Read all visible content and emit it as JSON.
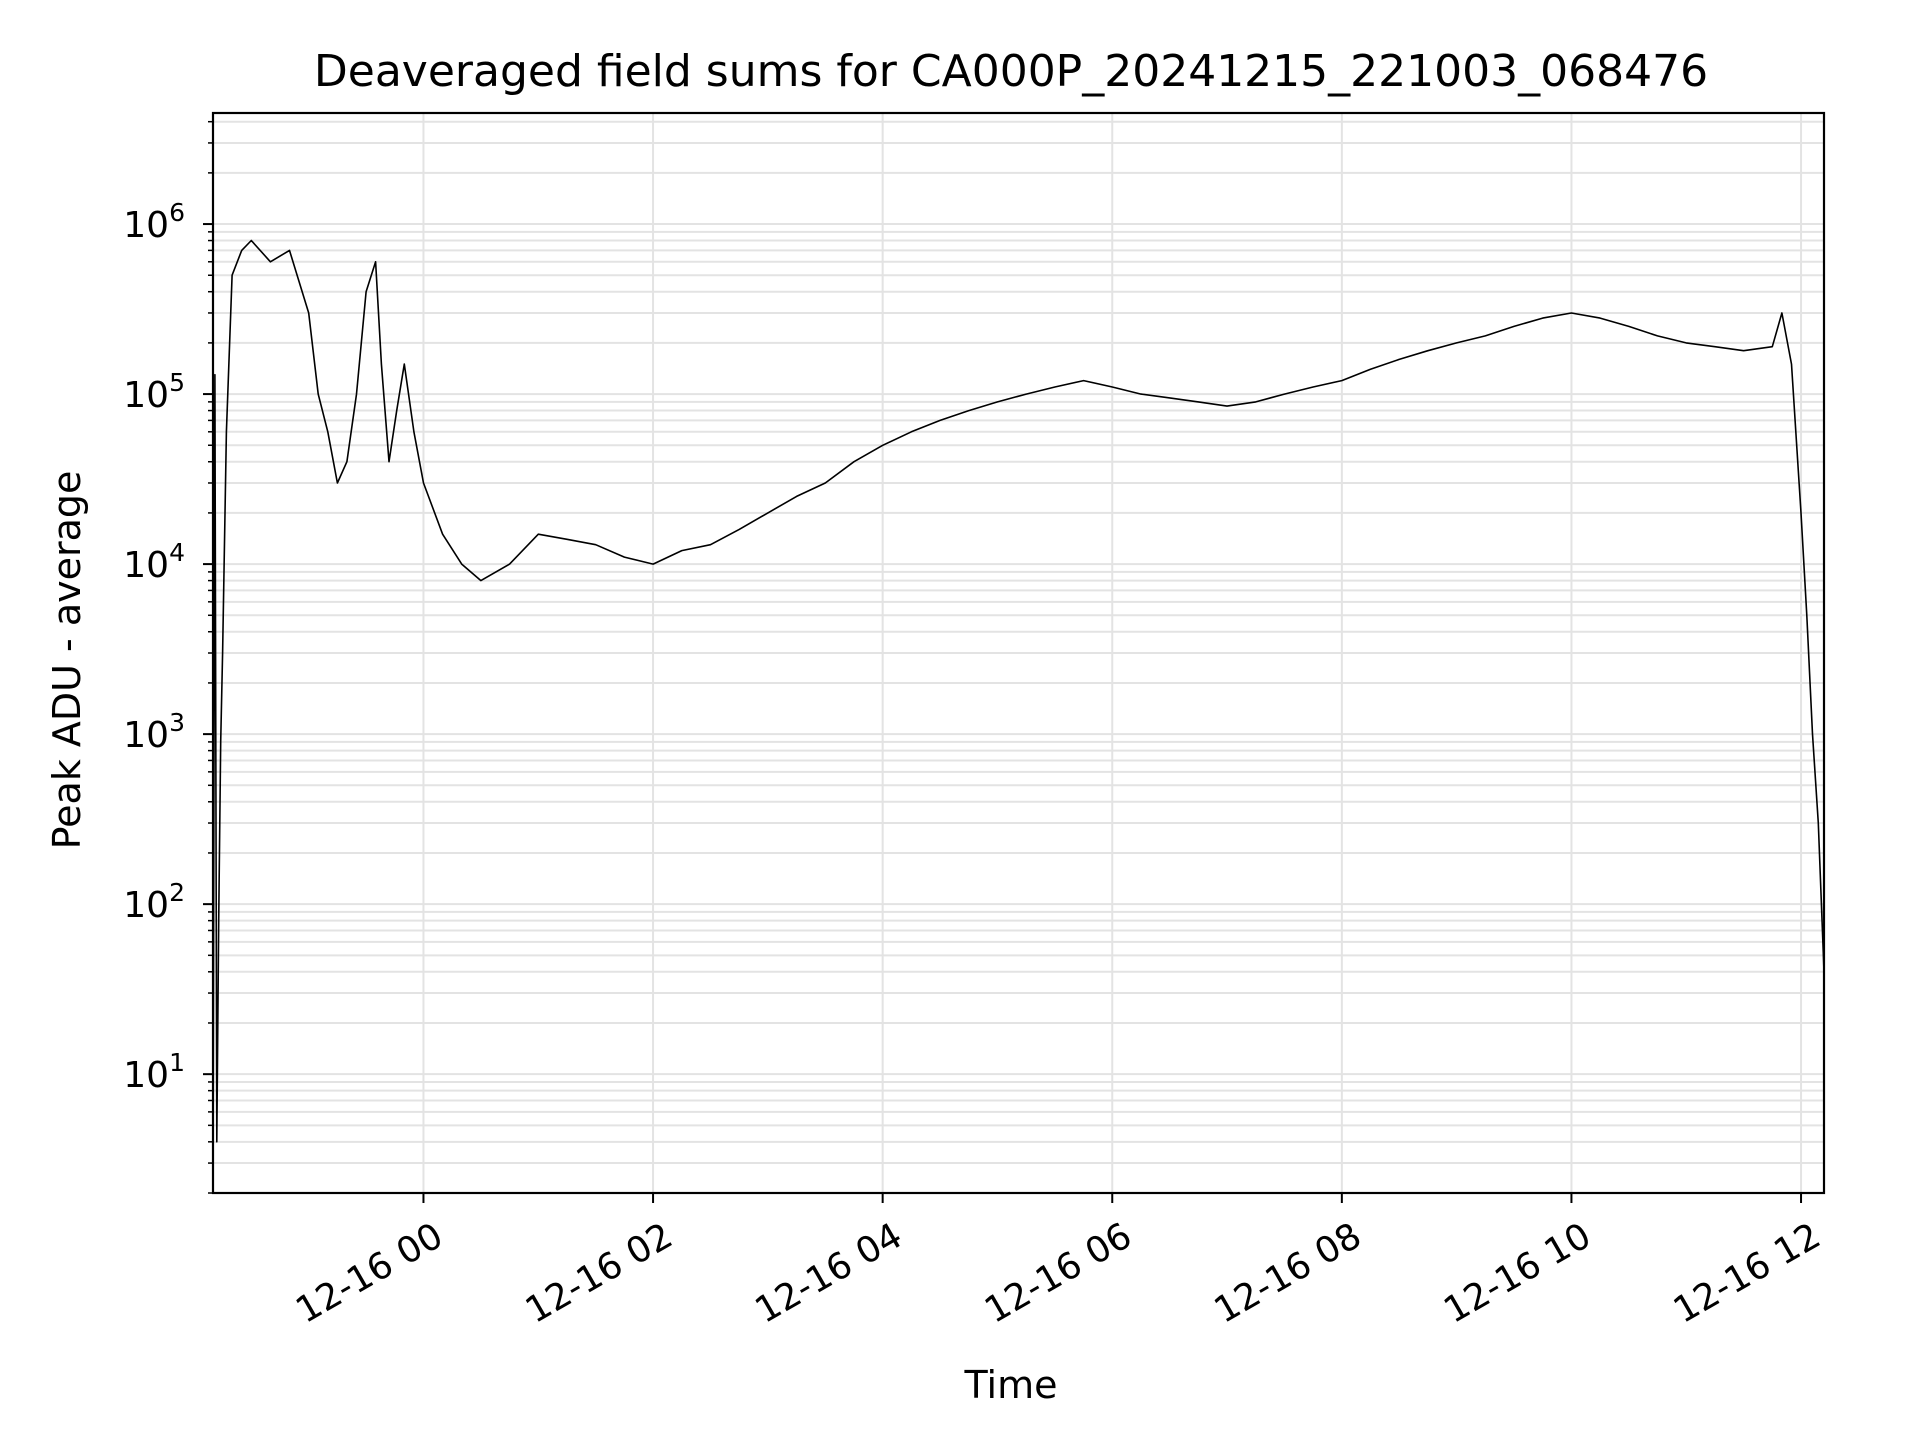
{
  "chart_data": {
    "type": "line",
    "title": "Deaveraged field sums for CA000P_20241215_221003_068476",
    "xlabel": "Time",
    "ylabel": "Peak ADU - average",
    "yscale": "log",
    "ylim": [
      2,
      4500000
    ],
    "xlim": [
      "2024-12-15 22:10",
      "2024-12-16 12:12"
    ],
    "grid": true,
    "line_color": "#000000",
    "grid_color": "#e3e3e3",
    "x_ticks": [
      {
        "value": "2024-12-16 00:00",
        "label": "12-16 00"
      },
      {
        "value": "2024-12-16 02:00",
        "label": "12-16 02"
      },
      {
        "value": "2024-12-16 04:00",
        "label": "12-16 04"
      },
      {
        "value": "2024-12-16 06:00",
        "label": "12-16 06"
      },
      {
        "value": "2024-12-16 08:00",
        "label": "12-16 08"
      },
      {
        "value": "2024-12-16 10:00",
        "label": "12-16 10"
      },
      {
        "value": "2024-12-16 12:00",
        "label": "12-16 12"
      }
    ],
    "y_ticks": [
      {
        "value": 10,
        "base": "10",
        "exp": "1"
      },
      {
        "value": 100,
        "base": "10",
        "exp": "2"
      },
      {
        "value": 1000,
        "base": "10",
        "exp": "3"
      },
      {
        "value": 10000,
        "base": "10",
        "exp": "4"
      },
      {
        "value": 100000,
        "base": "10",
        "exp": "5"
      },
      {
        "value": 1000000,
        "base": "10",
        "exp": "6"
      }
    ],
    "series": [
      {
        "x": [
          "2024-12-15 22:10",
          "2024-12-15 22:11",
          "2024-12-15 22:12",
          "2024-12-15 22:13",
          "2024-12-15 22:14",
          "2024-12-15 22:15",
          "2024-12-15 22:17",
          "2024-12-15 22:20",
          "2024-12-15 22:25",
          "2024-12-15 22:30",
          "2024-12-15 22:40",
          "2024-12-15 22:50",
          "2024-12-15 23:00",
          "2024-12-15 23:05",
          "2024-12-15 23:10",
          "2024-12-15 23:15",
          "2024-12-15 23:20",
          "2024-12-15 23:25",
          "2024-12-15 23:30",
          "2024-12-15 23:35",
          "2024-12-15 23:38",
          "2024-12-15 23:42",
          "2024-12-15 23:46",
          "2024-12-15 23:50",
          "2024-12-15 23:55",
          "2024-12-16 00:00",
          "2024-12-16 00:10",
          "2024-12-16 00:20",
          "2024-12-16 00:30",
          "2024-12-16 00:45",
          "2024-12-16 01:00",
          "2024-12-16 01:15",
          "2024-12-16 01:30",
          "2024-12-16 01:45",
          "2024-12-16 02:00",
          "2024-12-16 02:15",
          "2024-12-16 02:30",
          "2024-12-16 02:45",
          "2024-12-16 03:00",
          "2024-12-16 03:15",
          "2024-12-16 03:30",
          "2024-12-16 03:45",
          "2024-12-16 04:00",
          "2024-12-16 04:15",
          "2024-12-16 04:30",
          "2024-12-16 04:45",
          "2024-12-16 05:00",
          "2024-12-16 05:15",
          "2024-12-16 05:30",
          "2024-12-16 05:45",
          "2024-12-16 06:00",
          "2024-12-16 06:15",
          "2024-12-16 06:30",
          "2024-12-16 06:45",
          "2024-12-16 07:00",
          "2024-12-16 07:15",
          "2024-12-16 07:30",
          "2024-12-16 07:45",
          "2024-12-16 08:00",
          "2024-12-16 08:15",
          "2024-12-16 08:30",
          "2024-12-16 08:45",
          "2024-12-16 09:00",
          "2024-12-16 09:15",
          "2024-12-16 09:30",
          "2024-12-16 09:45",
          "2024-12-16 10:00",
          "2024-12-16 10:15",
          "2024-12-16 10:30",
          "2024-12-16 10:45",
          "2024-12-16 11:00",
          "2024-12-16 11:15",
          "2024-12-16 11:30",
          "2024-12-16 11:45",
          "2024-12-16 11:50",
          "2024-12-16 11:55",
          "2024-12-16 12:00",
          "2024-12-16 12:03",
          "2024-12-16 12:06",
          "2024-12-16 12:09",
          "2024-12-16 12:12"
        ],
        "y": [
          2,
          130000,
          4,
          80,
          900,
          3000,
          60000,
          500000,
          700000,
          800000,
          600000,
          700000,
          300000,
          100000,
          60000,
          30000,
          40000,
          100000,
          400000,
          600000,
          150000,
          40000,
          80000,
          150000,
          60000,
          30000,
          15000,
          10000,
          8000,
          10000,
          15000,
          14000,
          13000,
          11000,
          10000,
          12000,
          13000,
          16000,
          20000,
          25000,
          30000,
          40000,
          50000,
          60000,
          70000,
          80000,
          90000,
          100000,
          110000,
          120000,
          110000,
          100000,
          95000,
          90000,
          85000,
          90000,
          100000,
          110000,
          120000,
          140000,
          160000,
          180000,
          200000,
          220000,
          250000,
          280000,
          300000,
          280000,
          250000,
          220000,
          200000,
          190000,
          180000,
          190000,
          300000,
          150000,
          20000,
          5000,
          1000,
          300,
          40
        ]
      }
    ]
  }
}
